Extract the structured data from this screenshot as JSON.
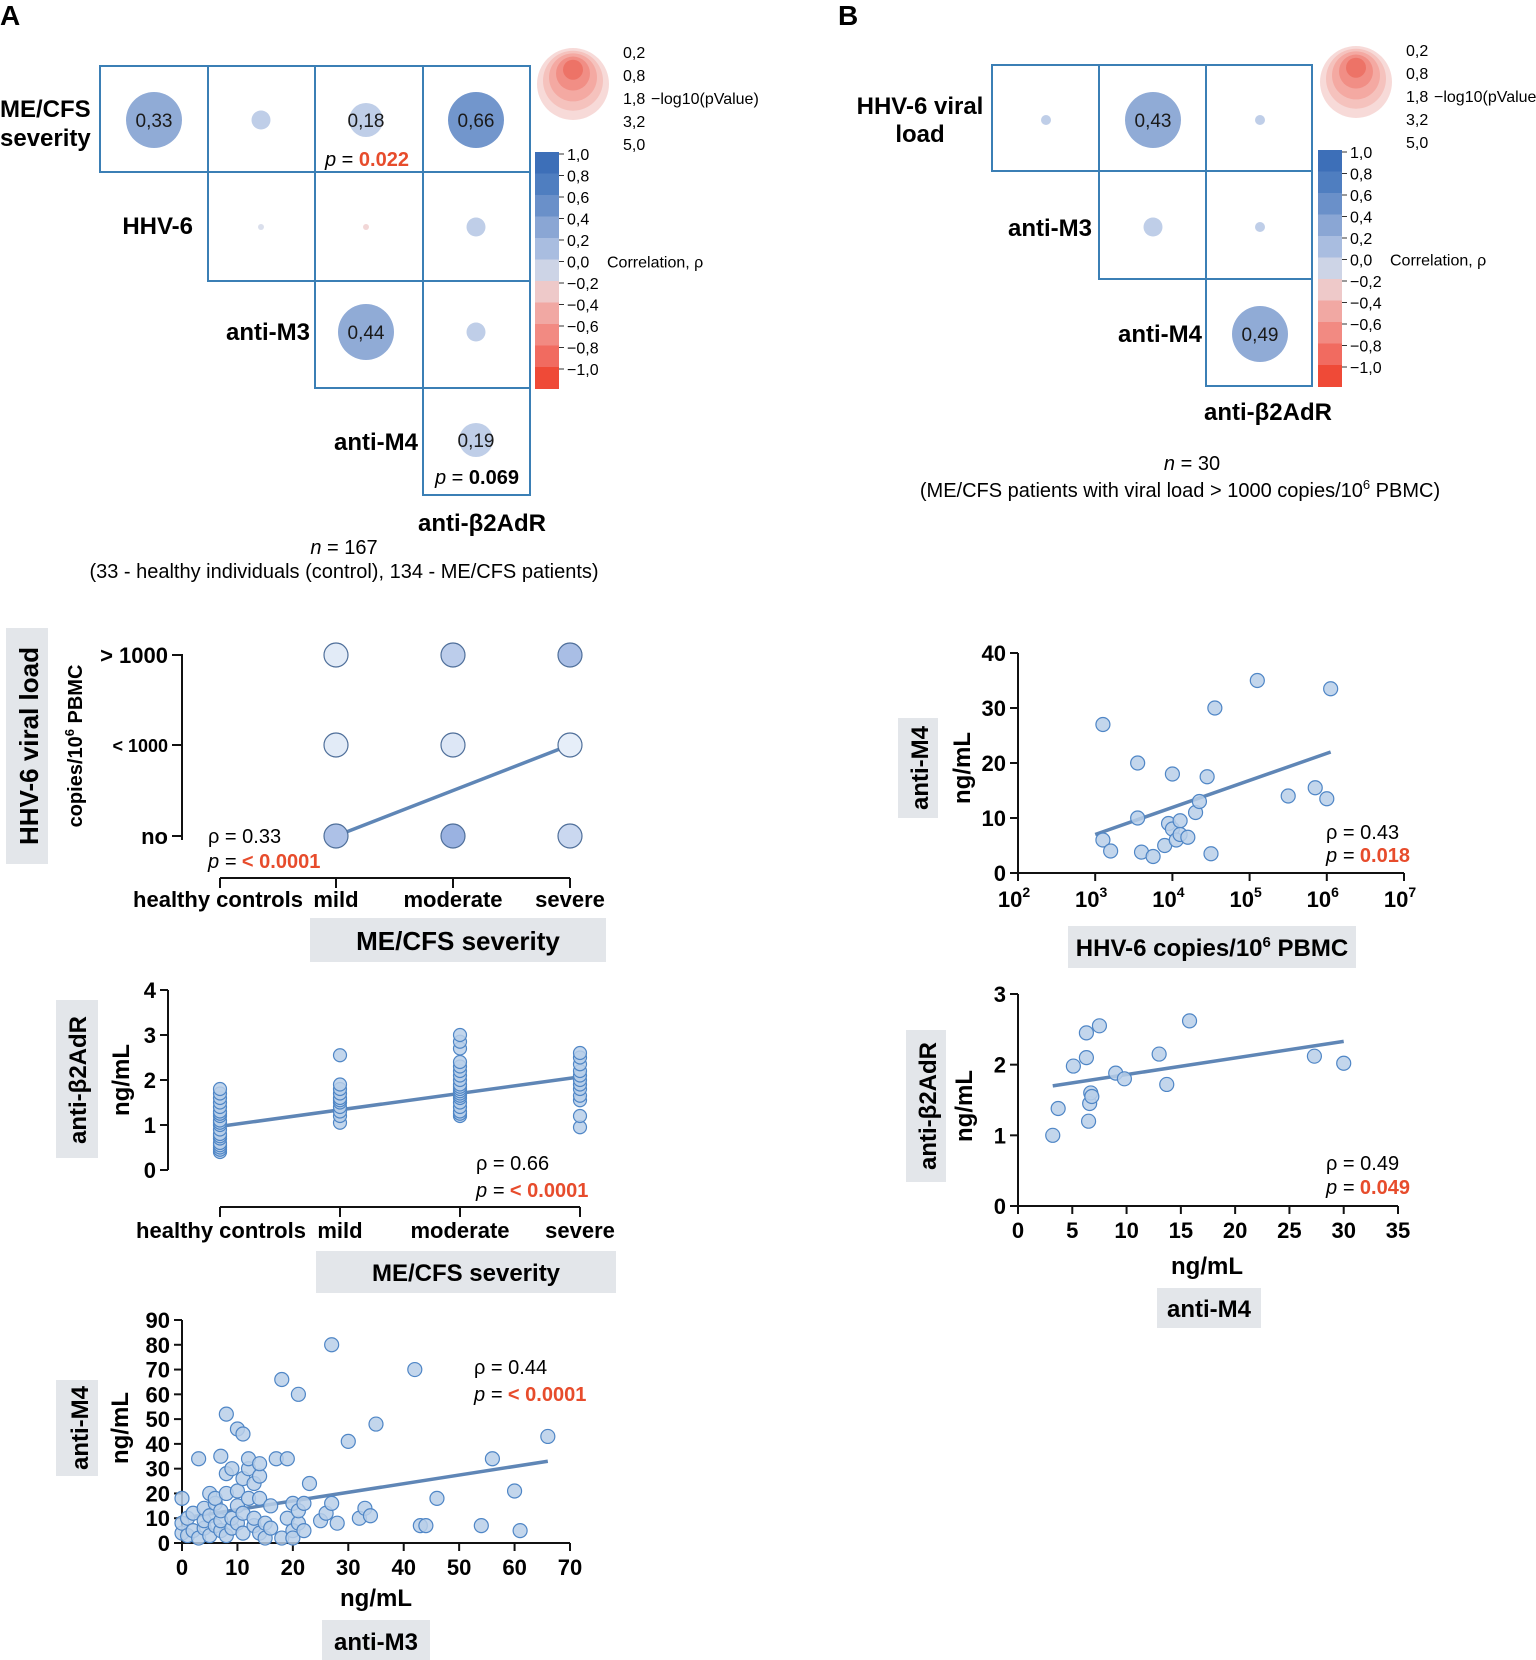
{
  "panels": {
    "a": "A",
    "b": "B"
  },
  "matrix_a": {
    "row_labels": [
      [
        "ME/CFS",
        "severity"
      ],
      [
        "HHV-6"
      ],
      [
        "anti-M3"
      ],
      [
        "anti-M4"
      ]
    ],
    "bottom_label": "anti-β2AdR",
    "cells": [
      {
        "row": 0,
        "col": 0,
        "rho": 0.33,
        "label": "0,33",
        "size": "large"
      },
      {
        "row": 0,
        "col": 1,
        "rho": 0.2,
        "label": "",
        "size": "small"
      },
      {
        "row": 0,
        "col": 2,
        "rho": 0.18,
        "label": "0,18",
        "size": "medium"
      },
      {
        "row": 0,
        "col": 3,
        "rho": 0.66,
        "label": "0,66",
        "size": "large"
      },
      {
        "row": 1,
        "col": 1,
        "rho": 0.1,
        "label": "",
        "size": "tiny"
      },
      {
        "row": 1,
        "col": 2,
        "rho": -0.1,
        "label": "",
        "size": "tiny"
      },
      {
        "row": 1,
        "col": 3,
        "rho": 0.2,
        "label": "",
        "size": "small"
      },
      {
        "row": 2,
        "col": 2,
        "rho": 0.44,
        "label": "0,44",
        "size": "large"
      },
      {
        "row": 2,
        "col": 3,
        "rho": 0.2,
        "label": "",
        "size": "small"
      },
      {
        "row": 3,
        "col": 3,
        "rho": 0.19,
        "label": "0,19",
        "size": "medium"
      }
    ],
    "pvalues": [
      {
        "cell": "0-2",
        "prefix": "p",
        "eq": " = ",
        "value": "0.022",
        "red": true
      },
      {
        "cell": "3-3",
        "prefix": "p",
        "eq": " = ",
        "value": "0.069",
        "red": false
      }
    ],
    "n_text": "n",
    "n_value": " = 167",
    "caption": "(33 - healthy individuals (control), 134 - ME/CFS patients)"
  },
  "matrix_b": {
    "row_labels": [
      [
        "HHV-6 viral",
        "load"
      ],
      [
        "anti-M3"
      ],
      [
        "anti-M4"
      ]
    ],
    "bottom_label": "anti-β2AdR",
    "cells": [
      {
        "row": 0,
        "col": 0,
        "rho": 0.15,
        "label": "",
        "size": "tiny2"
      },
      {
        "row": 0,
        "col": 1,
        "rho": 0.43,
        "label": "0,43",
        "size": "large"
      },
      {
        "row": 0,
        "col": 2,
        "rho": 0.15,
        "label": "",
        "size": "tiny2"
      },
      {
        "row": 1,
        "col": 1,
        "rho": 0.2,
        "label": "",
        "size": "small"
      },
      {
        "row": 1,
        "col": 2,
        "rho": 0.15,
        "label": "",
        "size": "tiny2"
      },
      {
        "row": 2,
        "col": 2,
        "rho": 0.49,
        "label": "0,49",
        "size": "large"
      }
    ],
    "n_text": "n",
    "n_value": " = 30",
    "caption_pre": "(ME/CFS patients with viral load > 1000 copies/10",
    "caption_sup": "6",
    "caption_post": " PBMC)"
  },
  "legend": {
    "size_values": [
      "0,2",
      "0,8",
      "1,8",
      "3,2",
      "5,0"
    ],
    "size_title": "−log10(pValue)",
    "color_ticks": [
      "1,0",
      "0,8",
      "0,6",
      "0,4",
      "0,2",
      "0,0",
      "−0,2",
      "−0,4",
      "−0,6",
      "−0,8",
      "−1,0"
    ],
    "color_title": "Correlation, ρ",
    "colors": [
      "#3d6fb8",
      "#4f7ec0",
      "#6a90c9",
      "#8aa6d4",
      "#a9bde0",
      "#cdd4e6",
      "#eec9c9",
      "#f1a8a3",
      "#f28a82",
      "#f16b60",
      "#ef4a37"
    ]
  },
  "chart_data": [
    {
      "id": "a1",
      "type": "scatter",
      "title": "",
      "xlabel": "ME/CFS severity",
      "ylabel": "HHV-6 viral load",
      "ylabel2_pre": "copies/10",
      "ylabel2_sup": "6",
      "ylabel2_post": " PBMC",
      "categories_x": [
        "healthy controls",
        "mild",
        "moderate",
        "severe"
      ],
      "categories_y": [
        "no",
        "< 1000",
        "> 1000"
      ],
      "bubbles": [
        {
          "x": "mild",
          "y": "> 1000",
          "shade": 0.1
        },
        {
          "x": "moderate",
          "y": "> 1000",
          "shade": 0.5
        },
        {
          "x": "severe",
          "y": "> 1000",
          "shade": 0.7
        },
        {
          "x": "mild",
          "y": "< 1000",
          "shade": 0.1
        },
        {
          "x": "moderate",
          "y": "< 1000",
          "shade": 0.15
        },
        {
          "x": "severe",
          "y": "< 1000",
          "shade": 0.05
        },
        {
          "x": "mild",
          "y": "no",
          "shade": 0.65
        },
        {
          "x": "moderate",
          "y": "no",
          "shade": 0.85
        },
        {
          "x": "severe",
          "y": "no",
          "shade": 0.35
        }
      ],
      "trend": {
        "from": [
          "mild",
          "no"
        ],
        "to": [
          "severe",
          "< 1000"
        ]
      },
      "stat_rho": "ρ = 0.33",
      "stat_p_label": "p = ",
      "stat_p": "< 0.0001"
    },
    {
      "id": "a2",
      "type": "scatter",
      "xlabel": "ME/CFS severity",
      "ylabel": "anti-β2AdR",
      "ylabel2": "ng/mL",
      "categories_x": [
        "healthy controls",
        "mild",
        "moderate",
        "severe"
      ],
      "ylim": [
        0,
        4
      ],
      "yticks": [
        "0",
        "1",
        "2",
        "3",
        "4"
      ],
      "groups": [
        {
          "x": "healthy controls",
          "values": [
            0.4,
            0.45,
            0.5,
            0.55,
            0.6,
            0.7,
            0.75,
            0.8,
            0.9,
            1.0,
            1.05,
            1.1,
            1.2,
            1.25,
            1.3,
            1.4,
            1.5,
            1.6,
            1.7,
            1.8
          ]
        },
        {
          "x": "mild",
          "values": [
            1.05,
            1.2,
            1.3,
            1.4,
            1.5,
            1.55,
            1.6,
            1.7,
            1.8,
            1.9,
            2.55
          ]
        },
        {
          "x": "moderate",
          "values": [
            1.2,
            1.25,
            1.3,
            1.4,
            1.5,
            1.6,
            1.65,
            1.7,
            1.75,
            1.8,
            1.85,
            1.9,
            2.0,
            2.1,
            2.2,
            2.3,
            2.4,
            2.7,
            2.85,
            3.0
          ]
        },
        {
          "x": "severe",
          "values": [
            0.95,
            1.2,
            1.55,
            1.65,
            1.8,
            1.9,
            2.0,
            2.1,
            2.2,
            2.35,
            2.5,
            2.6
          ]
        }
      ],
      "trend": {
        "from": 0.97,
        "to": 2.07
      },
      "stat_rho": "ρ = 0.66",
      "stat_p_label": "p = ",
      "stat_p": "< 0.0001"
    },
    {
      "id": "a3",
      "type": "scatter",
      "xlabel": "ng/mL",
      "xtitle": "anti-M3",
      "ylabel": "anti-M4",
      "ylabel2": "ng/mL",
      "xlim": [
        0,
        70
      ],
      "ylim": [
        0,
        90
      ],
      "xticks": [
        "0",
        "10",
        "20",
        "30",
        "40",
        "50",
        "60",
        "70"
      ],
      "yticks": [
        "0",
        "10",
        "20",
        "30",
        "40",
        "50",
        "60",
        "70",
        "80",
        "90"
      ],
      "points": [
        [
          0,
          4
        ],
        [
          0,
          8
        ],
        [
          0,
          18
        ],
        [
          1,
          3
        ],
        [
          1,
          10
        ],
        [
          2,
          5
        ],
        [
          2,
          12
        ],
        [
          3,
          34
        ],
        [
          3,
          2
        ],
        [
          4,
          6
        ],
        [
          4,
          9
        ],
        [
          4,
          14
        ],
        [
          5,
          20
        ],
        [
          5,
          3
        ],
        [
          5,
          11
        ],
        [
          6,
          7
        ],
        [
          6,
          16
        ],
        [
          6,
          18
        ],
        [
          7,
          5
        ],
        [
          7,
          9
        ],
        [
          7,
          13
        ],
        [
          7,
          35
        ],
        [
          8,
          20
        ],
        [
          8,
          28
        ],
        [
          8,
          52
        ],
        [
          8,
          3
        ],
        [
          9,
          6
        ],
        [
          9,
          10
        ],
        [
          9,
          30
        ],
        [
          10,
          46
        ],
        [
          10,
          21
        ],
        [
          10,
          15
        ],
        [
          10,
          8
        ],
        [
          11,
          44
        ],
        [
          11,
          26
        ],
        [
          11,
          4
        ],
        [
          11,
          12
        ],
        [
          12,
          18
        ],
        [
          12,
          30
        ],
        [
          12,
          34
        ],
        [
          13,
          24
        ],
        [
          13,
          7
        ],
        [
          13,
          10
        ],
        [
          14,
          27
        ],
        [
          14,
          32
        ],
        [
          14,
          18
        ],
        [
          14,
          4
        ],
        [
          15,
          2
        ],
        [
          15,
          8
        ],
        [
          16,
          6
        ],
        [
          16,
          15
        ],
        [
          17,
          34
        ],
        [
          18,
          66
        ],
        [
          18,
          2
        ],
        [
          19,
          10
        ],
        [
          19,
          34
        ],
        [
          20,
          5
        ],
        [
          20,
          16
        ],
        [
          20,
          2
        ],
        [
          21,
          60
        ],
        [
          21,
          8
        ],
        [
          21,
          13
        ],
        [
          22,
          5
        ],
        [
          22,
          16
        ],
        [
          23,
          24
        ],
        [
          25,
          9
        ],
        [
          26,
          12
        ],
        [
          27,
          80
        ],
        [
          27,
          16
        ],
        [
          28,
          8
        ],
        [
          30,
          41
        ],
        [
          32,
          10
        ],
        [
          33,
          14
        ],
        [
          34,
          11
        ],
        [
          35,
          48
        ],
        [
          42,
          70
        ],
        [
          43,
          7
        ],
        [
          44,
          7
        ],
        [
          46,
          18
        ],
        [
          54,
          7
        ],
        [
          56,
          34
        ],
        [
          60,
          21
        ],
        [
          61,
          5
        ],
        [
          66,
          43
        ]
      ],
      "trend": {
        "x1": 0,
        "y1": 10,
        "x2": 66,
        "y2": 33
      },
      "stat_rho": "ρ = 0.44",
      "stat_p_label": "p = ",
      "stat_p": "< 0.0001"
    },
    {
      "id": "b1",
      "type": "scatter",
      "xlabel_pre": "HHV-6 copies/10",
      "xlabel_sup": "6",
      "xlabel_post": " PBMC",
      "ylabel": "anti-M4",
      "ylabel2": "ng/mL",
      "xscale": "log",
      "xlim_log": [
        2,
        7
      ],
      "ylim": [
        0,
        40
      ],
      "xticks_base": "10",
      "xticks_exp": [
        "2",
        "3",
        "4",
        "5",
        "6",
        "7"
      ],
      "yticks": [
        "0",
        "10",
        "20",
        "30",
        "40"
      ],
      "points_log": [
        [
          3.1,
          6
        ],
        [
          3.1,
          27
        ],
        [
          3.2,
          4
        ],
        [
          3.55,
          10
        ],
        [
          3.55,
          20
        ],
        [
          3.6,
          3.8
        ],
        [
          3.75,
          3
        ],
        [
          3.9,
          5
        ],
        [
          3.95,
          9
        ],
        [
          4.0,
          8
        ],
        [
          4.0,
          18
        ],
        [
          4.05,
          6
        ],
        [
          4.1,
          9.5
        ],
        [
          4.1,
          7
        ],
        [
          4.2,
          6.5
        ],
        [
          4.3,
          11
        ],
        [
          4.35,
          13
        ],
        [
          4.45,
          17.5
        ],
        [
          4.5,
          3.5
        ],
        [
          4.55,
          30
        ],
        [
          5.1,
          35
        ],
        [
          5.5,
          14
        ],
        [
          5.85,
          15.5
        ],
        [
          6.0,
          13.5
        ],
        [
          6.05,
          33.5
        ]
      ],
      "trend": {
        "x1": 3.0,
        "y1": 7,
        "x2": 6.05,
        "y2": 22
      },
      "stat_rho": "ρ = 0.43",
      "stat_p_label": "p = ",
      "stat_p": "0.018"
    },
    {
      "id": "b2",
      "type": "scatter",
      "xlabel": "ng/mL",
      "xtitle": "anti-M4",
      "ylabel": "anti-β2AdR",
      "ylabel2": "ng/mL",
      "xlim": [
        0,
        35
      ],
      "ylim": [
        0,
        3
      ],
      "xticks": [
        "0",
        "5",
        "10",
        "15",
        "20",
        "25",
        "30",
        "35"
      ],
      "yticks": [
        "0",
        "1",
        "2",
        "3"
      ],
      "points": [
        [
          3.2,
          1.0
        ],
        [
          3.7,
          1.38
        ],
        [
          5.1,
          1.98
        ],
        [
          6.3,
          2.1
        ],
        [
          6.3,
          2.45
        ],
        [
          6.5,
          1.2
        ],
        [
          6.6,
          1.45
        ],
        [
          6.7,
          1.6
        ],
        [
          6.8,
          1.55
        ],
        [
          7.5,
          2.55
        ],
        [
          9.0,
          1.88
        ],
        [
          9.8,
          1.8
        ],
        [
          13.0,
          2.15
        ],
        [
          13.7,
          1.72
        ],
        [
          15.8,
          2.62
        ],
        [
          27.3,
          2.12
        ],
        [
          30.0,
          2.02
        ]
      ],
      "trend": {
        "x1": 3.2,
        "y1": 1.7,
        "x2": 30,
        "y2": 2.33
      },
      "stat_rho": "ρ = 0.49",
      "stat_p_label": "p = ",
      "stat_p": "0.049"
    }
  ]
}
